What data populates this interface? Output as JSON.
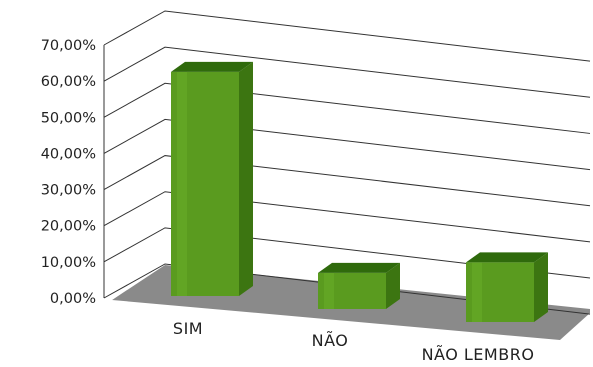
{
  "chart_data": {
    "type": "bar",
    "style": "3d-column",
    "categories": [
      "SIM",
      "NÃO",
      "NÃO LEMBRO"
    ],
    "values": [
      62.0,
      10.0,
      16.5
    ],
    "ylim": [
      0,
      70
    ],
    "ytick_labels": [
      "0,00%",
      "10,00%",
      "20,00%",
      "30,00%",
      "40,00%",
      "50,00%",
      "60,00%",
      "70,00%"
    ],
    "grid": true,
    "legend": "none",
    "title": "",
    "xlabel": "",
    "ylabel": ""
  },
  "colors": {
    "bar_front": "#5a9b1f",
    "bar_side": "#3c7511",
    "bar_top": "#2f6a0c",
    "floor": "#8a8a8a",
    "grid": "#333333"
  }
}
